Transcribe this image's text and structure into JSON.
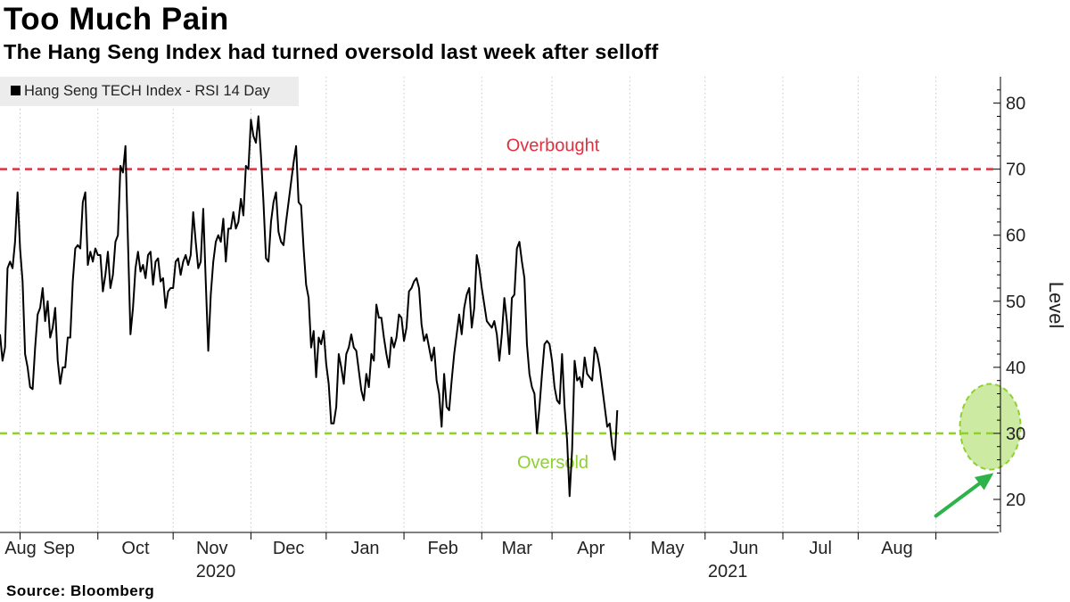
{
  "header": {
    "title": "Too Much Pain",
    "subtitle": "The Hang Seng Index had turned oversold last week after selloff"
  },
  "footer": {
    "source": "Source: Bloomberg"
  },
  "chart_data": {
    "type": "line",
    "legend": {
      "label": "Hang Seng TECH Index - RSI 14 Day",
      "placement": "top-left",
      "color": "#000000"
    },
    "ylabel": "Level",
    "yaxis_side": "right",
    "ylim": [
      15,
      84
    ],
    "yticks": [
      20,
      30,
      40,
      50,
      60,
      70,
      80
    ],
    "grid": "vertical dotted",
    "x_start": "2020-07-24",
    "x_end": "2021-08-26",
    "month_ticks": [
      "Aug",
      "Sep",
      "Oct",
      "Nov",
      "Dec",
      "Jan",
      "Feb",
      "Mar",
      "Apr",
      "May",
      "Jun",
      "Jul",
      "Aug"
    ],
    "year_labels": [
      "2020",
      "2021"
    ],
    "reference_lines": [
      {
        "label": "Overbought",
        "value": 70,
        "color": "#e03040"
      },
      {
        "label": "Oversold",
        "value": 30,
        "color": "#8ed12f"
      }
    ],
    "highlight": {
      "shape": "ellipse",
      "center": [
        "2021-08-23",
        31
      ],
      "color": "#8ed12f"
    },
    "arrow": {
      "from": [
        "2021-08-01",
        17.5
      ],
      "to": [
        "2021-08-24",
        24
      ],
      "color": "#2db34a"
    },
    "series": [
      {
        "color": "#000000",
        "points": [
          [
            "2020-07-24",
            45
          ],
          [
            "2020-07-25",
            41
          ],
          [
            "2020-07-26",
            43
          ],
          [
            "2020-07-27",
            55
          ],
          [
            "2020-07-28",
            56
          ],
          [
            "2020-07-29",
            55
          ],
          [
            "2020-07-30",
            59
          ],
          [
            "2020-07-31",
            66.5
          ],
          [
            "2020-08-01",
            58
          ],
          [
            "2020-08-02",
            53
          ],
          [
            "2020-08-03",
            42
          ],
          [
            "2020-08-04",
            40
          ],
          [
            "2020-08-05",
            37
          ],
          [
            "2020-08-06",
            36.7
          ],
          [
            "2020-08-07",
            43
          ],
          [
            "2020-08-08",
            48
          ],
          [
            "2020-08-09",
            49
          ],
          [
            "2020-08-10",
            52
          ],
          [
            "2020-08-11",
            47
          ],
          [
            "2020-08-12",
            50
          ],
          [
            "2020-08-13",
            44.5
          ],
          [
            "2020-08-14",
            46
          ],
          [
            "2020-08-15",
            49
          ],
          [
            "2020-08-16",
            41
          ],
          [
            "2020-08-17",
            37.5
          ],
          [
            "2020-08-18",
            40
          ],
          [
            "2020-08-19",
            40
          ],
          [
            "2020-08-20",
            44.5
          ],
          [
            "2020-08-21",
            44.5
          ],
          [
            "2020-08-22",
            53
          ],
          [
            "2020-08-23",
            58
          ],
          [
            "2020-08-24",
            58.5
          ],
          [
            "2020-08-25",
            58
          ],
          [
            "2020-08-26",
            65
          ],
          [
            "2020-08-27",
            66.5
          ],
          [
            "2020-08-28",
            55.5
          ],
          [
            "2020-08-29",
            57.5
          ],
          [
            "2020-08-30",
            56
          ],
          [
            "2020-08-31",
            58
          ],
          [
            "2020-09-01",
            57
          ],
          [
            "2020-09-02",
            57
          ],
          [
            "2020-09-03",
            51.5
          ],
          [
            "2020-09-04",
            54
          ],
          [
            "2020-09-05",
            57.5
          ],
          [
            "2020-09-06",
            52
          ],
          [
            "2020-09-07",
            54
          ],
          [
            "2020-09-08",
            59
          ],
          [
            "2020-09-09",
            60
          ],
          [
            "2020-09-10",
            70.5
          ],
          [
            "2020-09-11",
            69.5
          ],
          [
            "2020-09-12",
            73.5
          ],
          [
            "2020-09-13",
            59
          ],
          [
            "2020-09-14",
            45
          ],
          [
            "2020-09-15",
            49
          ],
          [
            "2020-09-16",
            55
          ],
          [
            "2020-09-17",
            57.5
          ],
          [
            "2020-09-18",
            54.5
          ],
          [
            "2020-09-19",
            55.5
          ],
          [
            "2020-09-20",
            53.5
          ],
          [
            "2020-09-21",
            57
          ],
          [
            "2020-09-22",
            57.5
          ],
          [
            "2020-09-23",
            52.5
          ],
          [
            "2020-09-24",
            56
          ],
          [
            "2020-09-25",
            56.5
          ],
          [
            "2020-09-26",
            53
          ],
          [
            "2020-09-27",
            53.5
          ],
          [
            "2020-09-28",
            49
          ],
          [
            "2020-09-29",
            51.5
          ],
          [
            "2020-09-30",
            52
          ],
          [
            "2020-10-01",
            52
          ],
          [
            "2020-10-02",
            56
          ],
          [
            "2020-10-03",
            56.5
          ],
          [
            "2020-10-04",
            54
          ],
          [
            "2020-10-05",
            56
          ],
          [
            "2020-10-06",
            57
          ],
          [
            "2020-10-07",
            55.5
          ],
          [
            "2020-10-08",
            57
          ],
          [
            "2020-10-09",
            63.5
          ],
          [
            "2020-10-10",
            59
          ],
          [
            "2020-10-11",
            55
          ],
          [
            "2020-10-12",
            56
          ],
          [
            "2020-10-13",
            64
          ],
          [
            "2020-10-14",
            53
          ],
          [
            "2020-10-15",
            42.5
          ],
          [
            "2020-10-16",
            51
          ],
          [
            "2020-10-17",
            56
          ],
          [
            "2020-10-18",
            59
          ],
          [
            "2020-10-19",
            60
          ],
          [
            "2020-10-20",
            59
          ],
          [
            "2020-10-21",
            62.5
          ],
          [
            "2020-10-22",
            56
          ],
          [
            "2020-10-23",
            61
          ],
          [
            "2020-10-24",
            61
          ],
          [
            "2020-10-25",
            63.5
          ],
          [
            "2020-10-26",
            61
          ],
          [
            "2020-10-27",
            62
          ],
          [
            "2020-10-28",
            65.5
          ],
          [
            "2020-10-29",
            63
          ],
          [
            "2020-10-30",
            70.5
          ],
          [
            "2020-10-31",
            70
          ],
          [
            "2020-11-01",
            77.5
          ],
          [
            "2020-11-02",
            75
          ],
          [
            "2020-11-03",
            74
          ],
          [
            "2020-11-04",
            78
          ],
          [
            "2020-11-05",
            72
          ],
          [
            "2020-11-06",
            65
          ],
          [
            "2020-11-07",
            56.5
          ],
          [
            "2020-11-08",
            56
          ],
          [
            "2020-11-09",
            62
          ],
          [
            "2020-11-10",
            65
          ],
          [
            "2020-11-11",
            66.5
          ],
          [
            "2020-11-12",
            60.5
          ],
          [
            "2020-11-13",
            59
          ],
          [
            "2020-11-14",
            58.5
          ],
          [
            "2020-11-15",
            62
          ],
          [
            "2020-11-16",
            65
          ],
          [
            "2020-11-17",
            68
          ],
          [
            "2020-11-18",
            71
          ],
          [
            "2020-11-19",
            73.5
          ],
          [
            "2020-11-20",
            65
          ],
          [
            "2020-11-21",
            64.5
          ],
          [
            "2020-11-22",
            58
          ],
          [
            "2020-11-23",
            52.5
          ],
          [
            "2020-11-24",
            50.5
          ],
          [
            "2020-11-25",
            43
          ],
          [
            "2020-11-26",
            45.5
          ],
          [
            "2020-11-27",
            38.5
          ],
          [
            "2020-11-28",
            44.5
          ],
          [
            "2020-11-29",
            43.5
          ],
          [
            "2020-11-30",
            45.5
          ],
          [
            "2020-12-01",
            40.5
          ],
          [
            "2020-12-02",
            37.5
          ],
          [
            "2020-12-03",
            31.5
          ],
          [
            "2020-12-04",
            31.5
          ],
          [
            "2020-12-05",
            34
          ],
          [
            "2020-12-06",
            42
          ],
          [
            "2020-12-07",
            40
          ],
          [
            "2020-12-08",
            37.5
          ],
          [
            "2020-12-09",
            42
          ],
          [
            "2020-12-10",
            43
          ],
          [
            "2020-12-11",
            45
          ],
          [
            "2020-12-12",
            43
          ],
          [
            "2020-12-13",
            42.5
          ],
          [
            "2020-12-14",
            39.5
          ],
          [
            "2020-12-15",
            36.5
          ],
          [
            "2020-12-16",
            35
          ],
          [
            "2020-12-17",
            39
          ],
          [
            "2020-12-18",
            37
          ],
          [
            "2020-12-19",
            42
          ],
          [
            "2020-12-20",
            41
          ],
          [
            "2020-12-21",
            49.5
          ],
          [
            "2020-12-22",
            47.5
          ],
          [
            "2020-12-23",
            47.5
          ],
          [
            "2020-12-24",
            44.5
          ],
          [
            "2020-12-25",
            42
          ],
          [
            "2020-12-26",
            40
          ],
          [
            "2020-12-27",
            44.5
          ],
          [
            "2020-12-28",
            43
          ],
          [
            "2020-12-29",
            44.5
          ],
          [
            "2020-12-30",
            48
          ],
          [
            "2020-12-31",
            47.5
          ],
          [
            "2021-01-01",
            44
          ],
          [
            "2021-01-02",
            46
          ],
          [
            "2021-01-03",
            51.5
          ],
          [
            "2021-01-04",
            52
          ],
          [
            "2021-01-05",
            53
          ],
          [
            "2021-01-06",
            53.5
          ],
          [
            "2021-01-07",
            52
          ],
          [
            "2021-01-08",
            46.5
          ],
          [
            "2021-01-09",
            44
          ],
          [
            "2021-01-10",
            45
          ],
          [
            "2021-01-11",
            43
          ],
          [
            "2021-01-12",
            41
          ],
          [
            "2021-01-13",
            43
          ],
          [
            "2021-01-14",
            38
          ],
          [
            "2021-01-15",
            36
          ],
          [
            "2021-01-16",
            31
          ],
          [
            "2021-01-17",
            39
          ],
          [
            "2021-01-18",
            34
          ],
          [
            "2021-01-19",
            33.5
          ],
          [
            "2021-01-20",
            38
          ],
          [
            "2021-01-21",
            42
          ],
          [
            "2021-01-22",
            45
          ],
          [
            "2021-01-23",
            48
          ],
          [
            "2021-01-24",
            45
          ],
          [
            "2021-01-25",
            49
          ],
          [
            "2021-01-26",
            51
          ],
          [
            "2021-01-27",
            52
          ],
          [
            "2021-01-28",
            46
          ],
          [
            "2021-01-29",
            49
          ],
          [
            "2021-01-30",
            57
          ],
          [
            "2021-01-31",
            55
          ],
          [
            "2021-02-01",
            52
          ],
          [
            "2021-02-02",
            49.5
          ],
          [
            "2021-02-03",
            47
          ],
          [
            "2021-02-04",
            46.5
          ],
          [
            "2021-02-05",
            46
          ],
          [
            "2021-02-06",
            47
          ],
          [
            "2021-02-07",
            45
          ],
          [
            "2021-02-08",
            41
          ],
          [
            "2021-02-09",
            45
          ],
          [
            "2021-02-10",
            50.5
          ],
          [
            "2021-02-11",
            47
          ],
          [
            "2021-02-12",
            42
          ],
          [
            "2021-02-13",
            50.5
          ],
          [
            "2021-02-14",
            51
          ],
          [
            "2021-02-15",
            58
          ],
          [
            "2021-02-16",
            59
          ],
          [
            "2021-02-17",
            56
          ],
          [
            "2021-02-18",
            53.5
          ],
          [
            "2021-02-19",
            43.5
          ],
          [
            "2021-02-20",
            39
          ],
          [
            "2021-02-21",
            37
          ],
          [
            "2021-02-22",
            36
          ],
          [
            "2021-02-23",
            30
          ],
          [
            "2021-02-24",
            34
          ],
          [
            "2021-02-25",
            39
          ],
          [
            "2021-02-26",
            43.5
          ],
          [
            "2021-02-27",
            44
          ],
          [
            "2021-02-28",
            43.5
          ],
          [
            "2021-03-01",
            41
          ],
          [
            "2021-03-02",
            37
          ],
          [
            "2021-03-03",
            35
          ],
          [
            "2021-03-04",
            34.5
          ],
          [
            "2021-03-05",
            42
          ],
          [
            "2021-03-06",
            34
          ],
          [
            "2021-03-07",
            29
          ],
          [
            "2021-03-08",
            20.5
          ],
          [
            "2021-03-09",
            27.5
          ],
          [
            "2021-03-10",
            41
          ],
          [
            "2021-03-11",
            38
          ],
          [
            "2021-03-12",
            38.5
          ],
          [
            "2021-03-13",
            37
          ],
          [
            "2021-03-14",
            41.5
          ],
          [
            "2021-03-15",
            39
          ],
          [
            "2021-03-16",
            38.5
          ],
          [
            "2021-03-17",
            38
          ],
          [
            "2021-03-18",
            43
          ],
          [
            "2021-03-19",
            42
          ],
          [
            "2021-03-20",
            40
          ],
          [
            "2021-03-21",
            37
          ],
          [
            "2021-03-22",
            34
          ],
          [
            "2021-03-23",
            31
          ],
          [
            "2021-03-24",
            31.5
          ],
          [
            "2021-03-25",
            28
          ],
          [
            "2021-03-26",
            26
          ],
          [
            "2021-03-27",
            33.5
          ]
        ]
      }
    ]
  }
}
